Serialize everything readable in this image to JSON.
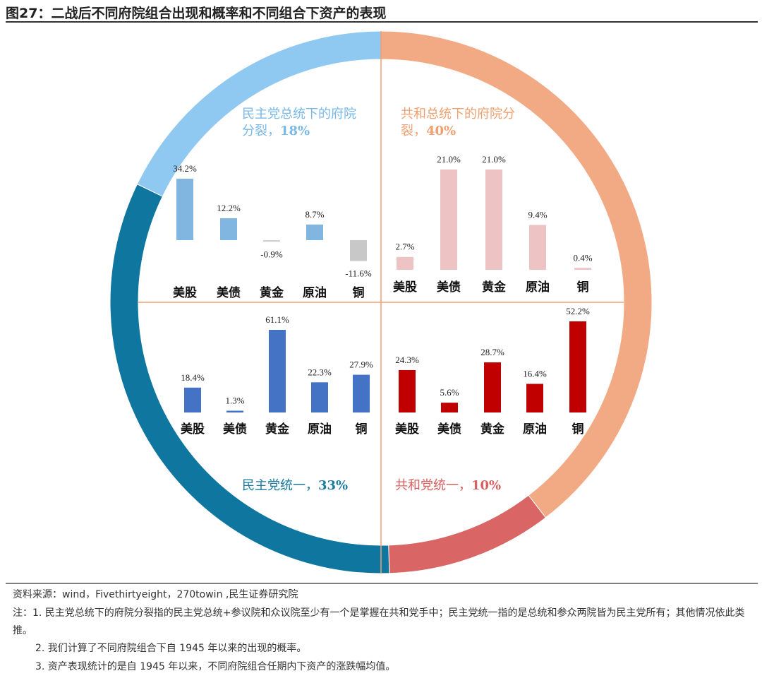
{
  "title": "图27：二战后不同府院组合出现和概率和不同组合下资产的表现",
  "chart_data": [
    {
      "type": "donut",
      "labels": [
        "共和总统下的府院分裂，",
        "共和党统一，",
        "民主党统一，",
        "民主党总统下的府院分裂，"
      ],
      "values": [
        40,
        10,
        33,
        18
      ],
      "value_labels": [
        "40%",
        "10%",
        "33%",
        "18%"
      ],
      "colors": [
        "#f2aa84",
        "#d96565",
        "#0f76a0",
        "#8fc8f0"
      ]
    },
    {
      "type": "bar",
      "categories": [
        "美股",
        "美债",
        "黄金",
        "原油",
        "铜"
      ],
      "values": [
        34.2,
        12.2,
        -0.9,
        8.7,
        -11.6
      ],
      "value_labels": [
        "34.2%",
        "12.2%",
        "-0.9%",
        "8.7%",
        "-11.6%"
      ],
      "colors": [
        "#80b6e0",
        "#80b6e0",
        "#d0d0d0",
        "#80b6e0",
        "#c8c8c8"
      ]
    },
    {
      "type": "bar",
      "categories": [
        "美股",
        "美债",
        "黄金",
        "原油",
        "铜"
      ],
      "values": [
        2.7,
        21.0,
        21.0,
        9.4,
        0.4
      ],
      "value_labels": [
        "2.7%",
        "21.0%",
        "21.0%",
        "9.4%",
        "0.4%"
      ],
      "colors": [
        "#edc3c3",
        "#edc3c3",
        "#edc3c3",
        "#edc3c3",
        "#edc3c3"
      ]
    },
    {
      "type": "bar",
      "categories": [
        "美股",
        "美债",
        "黄金",
        "原油",
        "铜"
      ],
      "values": [
        18.4,
        1.3,
        61.1,
        22.3,
        27.9
      ],
      "value_labels": [
        "18.4%",
        "1.3%",
        "61.1%",
        "22.3%",
        "27.9%"
      ],
      "colors": [
        "#4472c4",
        "#4472c4",
        "#4472c4",
        "#4472c4",
        "#4472c4"
      ]
    },
    {
      "type": "bar",
      "categories": [
        "美股",
        "美债",
        "黄金",
        "原油",
        "铜"
      ],
      "values": [
        24.3,
        5.6,
        28.7,
        16.4,
        52.2
      ],
      "value_labels": [
        "24.3%",
        "5.6%",
        "28.7%",
        "16.4%",
        "52.2%"
      ],
      "colors": [
        "#c00000",
        "#c00000",
        "#c00000",
        "#c00000",
        "#c00000"
      ]
    }
  ],
  "source": "资料来源：wind，Fivethirtyeight，270towin ,民生证券研究院",
  "notes": [
    "注：1. 民主党总统下的府院分裂指的民主党总统+参议院和众议院至少有一个是掌握在共和党手中；民主党统一指的是总统和参众两院皆为民主党所有；其他情况依此类推。",
    "2. 我们计算了不同府院组合下自 1945 年以来的出现的概率。",
    "3. 资产表现统计的是自 1945 年以来，不同府院组合任期内下资产的涨跌幅均值。"
  ]
}
